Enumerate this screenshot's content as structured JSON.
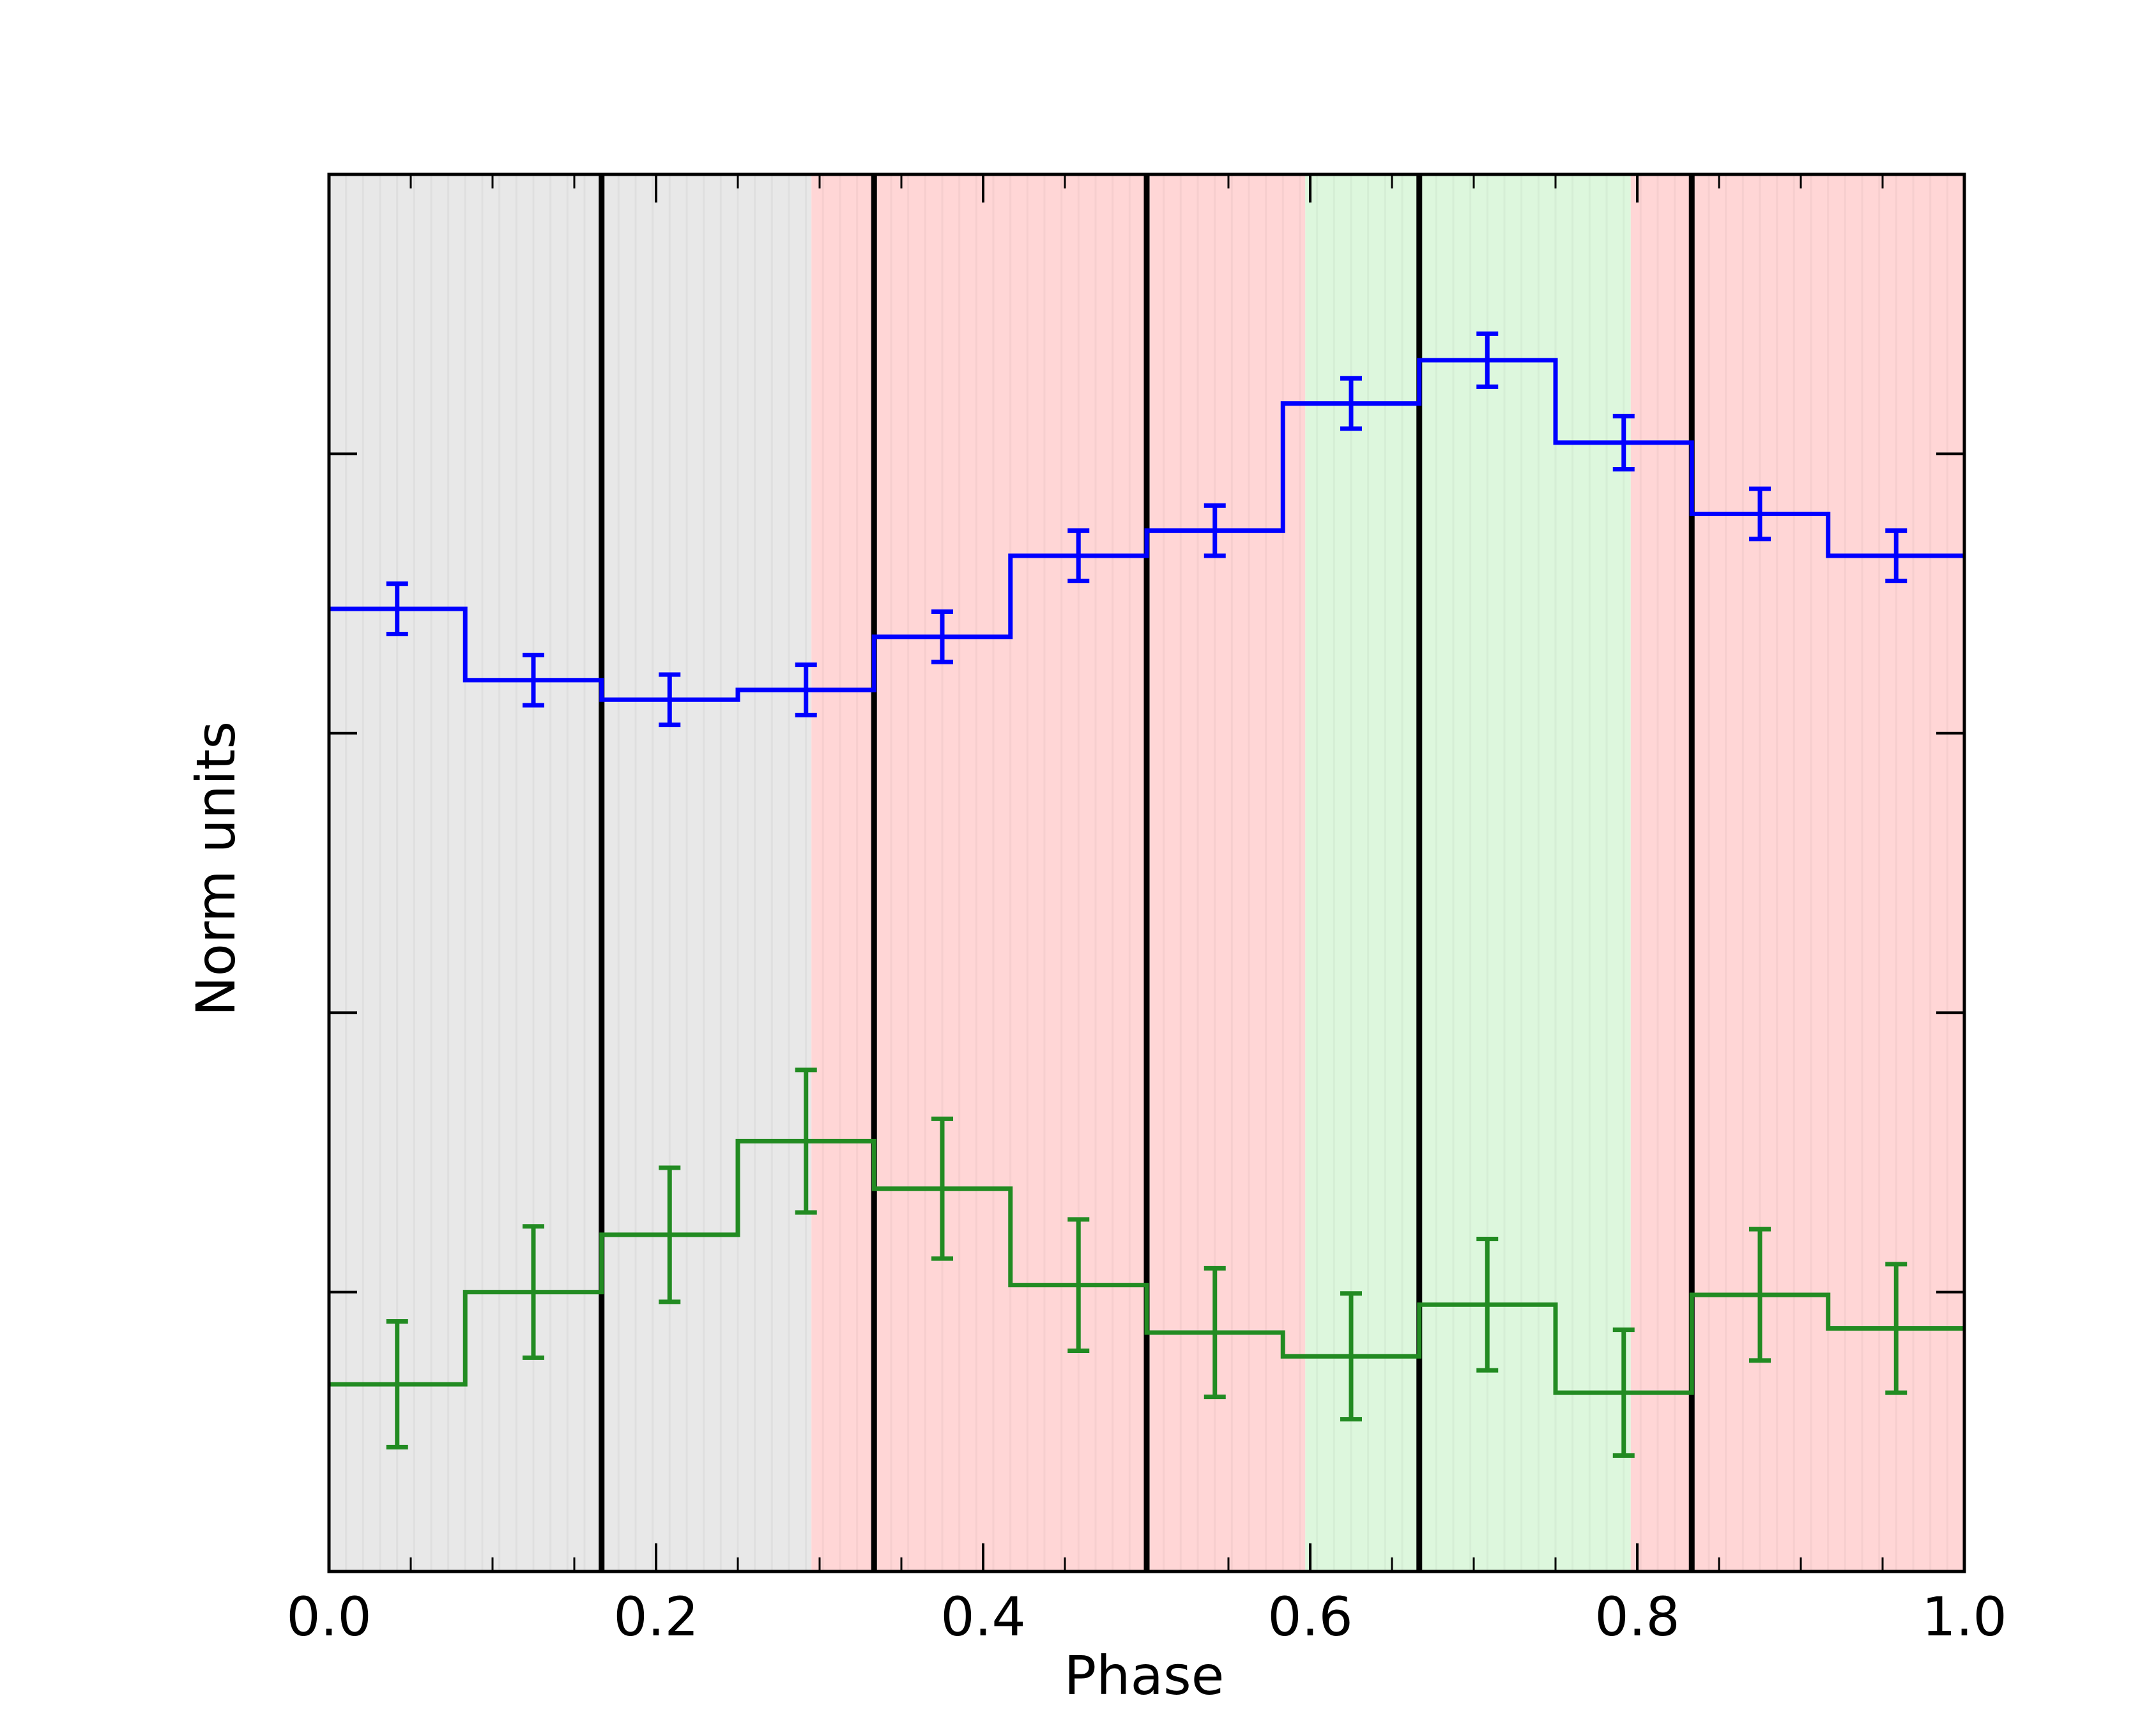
{
  "chart_data": {
    "type": "line",
    "title": "",
    "xlabel": "Phase",
    "ylabel": "Norm units",
    "xlim": [
      0.0,
      1.0
    ],
    "ylim": [
      0.0,
      1.0
    ],
    "x_ticks": [
      "0.0",
      "0.2",
      "0.4",
      "0.6",
      "0.8",
      "1.0"
    ],
    "x_tick_values": [
      0.0,
      0.2,
      0.4,
      0.6,
      0.8,
      1.0
    ],
    "y_tick_values": [
      0.2,
      0.4,
      0.6,
      0.8
    ],
    "y_tick_labels_shown": false,
    "grid": false,
    "drawstyle": "steps-mid",
    "bin_edges": [
      0.0,
      0.0833,
      0.1667,
      0.25,
      0.3333,
      0.4167,
      0.5,
      0.5833,
      0.6667,
      0.75,
      0.8333,
      0.9167,
      1.0
    ],
    "bin_centers": [
      0.0417,
      0.125,
      0.2083,
      0.2917,
      0.375,
      0.4583,
      0.5417,
      0.625,
      0.7083,
      0.7917,
      0.875,
      0.9583
    ],
    "series": [
      {
        "color": "#0000ff",
        "values": [
          0.689,
          0.638,
          0.624,
          0.631,
          0.669,
          0.727,
          0.745,
          0.836,
          0.867,
          0.808,
          0.757,
          0.727
        ],
        "errors": [
          0.018,
          0.018,
          0.018,
          0.018,
          0.018,
          0.018,
          0.018,
          0.018,
          0.019,
          0.019,
          0.018,
          0.018
        ]
      },
      {
        "color": "#228b22",
        "values": [
          0.134,
          0.2,
          0.241,
          0.308,
          0.274,
          0.205,
          0.171,
          0.154,
          0.191,
          0.128,
          0.198,
          0.174
        ],
        "errors": [
          0.045,
          0.047,
          0.048,
          0.051,
          0.05,
          0.047,
          0.046,
          0.045,
          0.047,
          0.045,
          0.047,
          0.046
        ]
      }
    ],
    "vertical_lines": [
      0.1667,
      0.3333,
      0.5,
      0.6667,
      0.8333
    ],
    "shaded_regions": [
      {
        "from": 0.0,
        "to": 0.295,
        "color": "#e8e8e8"
      },
      {
        "from": 0.295,
        "to": 0.597,
        "color": "#ffd6d6"
      },
      {
        "from": 0.597,
        "to": 0.796,
        "color": "#ddf7dd"
      },
      {
        "from": 0.796,
        "to": 1.0,
        "color": "#ffd6d6"
      }
    ]
  }
}
